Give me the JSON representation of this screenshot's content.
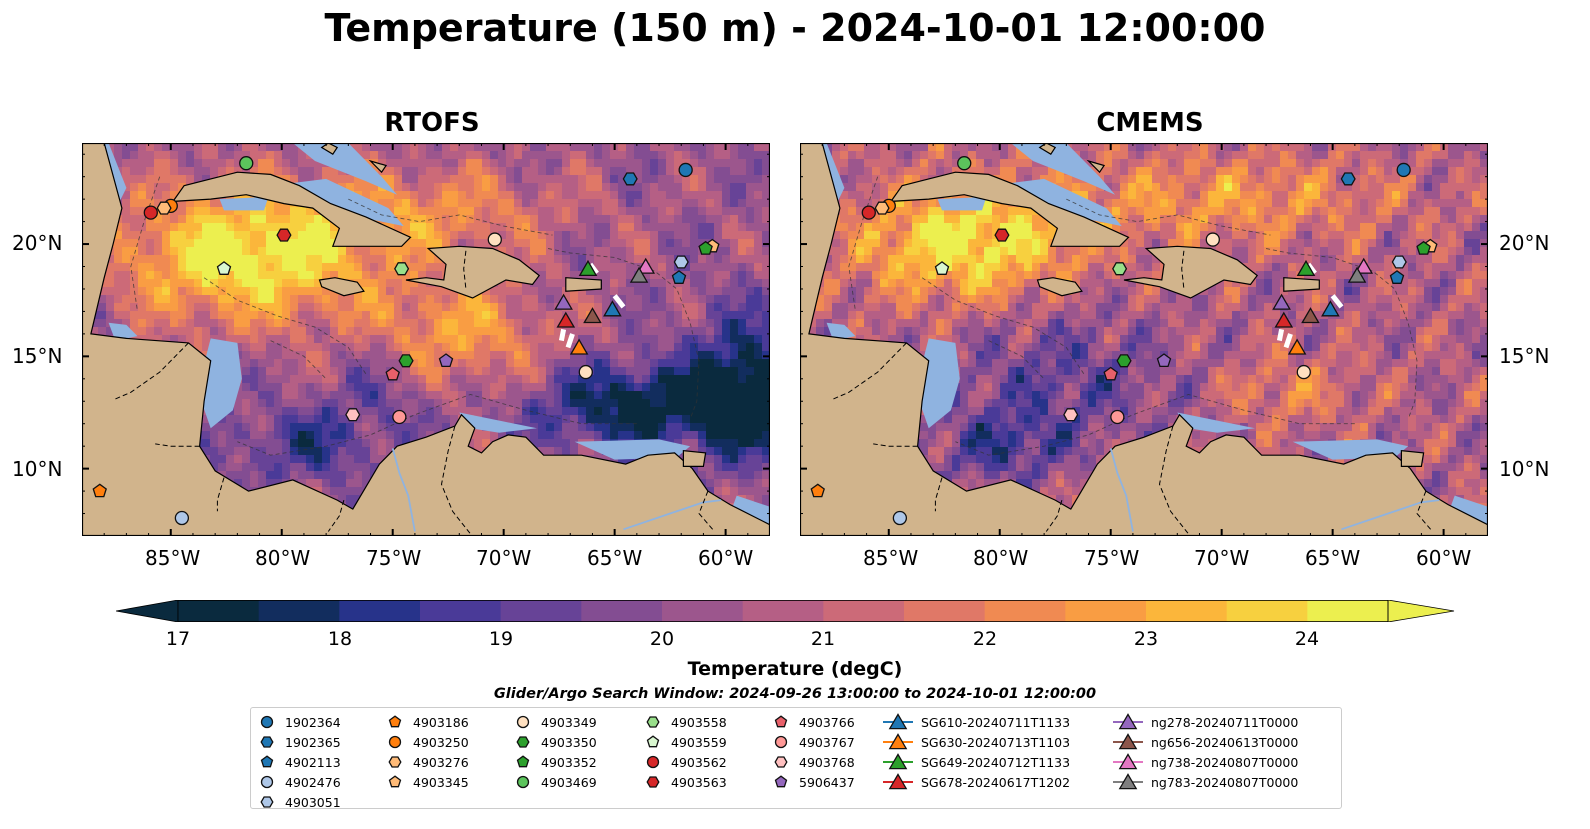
{
  "title": "Temperature (150 m) - 2024-10-01 12:00:00",
  "panels": [
    {
      "title": "RTOFS"
    },
    {
      "title": "CMEMS"
    }
  ],
  "lat_labels": [
    "20°N",
    "15°N",
    "10°N"
  ],
  "lon_labels": [
    "85°W",
    "80°W",
    "75°W",
    "70°W",
    "65°W",
    "60°W"
  ],
  "map_extent": {
    "lon": [
      -89,
      -58
    ],
    "lat": [
      7,
      24.5
    ]
  },
  "colorbar": {
    "label": "Temperature (degC)",
    "ticks": [
      "17",
      "18",
      "19",
      "20",
      "21",
      "22",
      "23",
      "24"
    ],
    "range": [
      17,
      24.5
    ],
    "colors": [
      "#0a2a3e",
      "#122d5e",
      "#27338a",
      "#4a3a98",
      "#674397",
      "#834d92",
      "#9c568d",
      "#b55f85",
      "#cc6a78",
      "#e07867",
      "#f08a52",
      "#f99d43",
      "#fbb63b",
      "#f7d03f",
      "#ecef4f"
    ]
  },
  "search_window": "Glider/Argo Search Window: 2024-09-26 13:00:00 to 2024-10-01 12:00:00",
  "legend": [
    {
      "label": "1902364",
      "marker": "circle",
      "color": "#1f77b4"
    },
    {
      "label": "1902365",
      "marker": "hexagon",
      "color": "#1f77b4"
    },
    {
      "label": "4902113",
      "marker": "pentagon",
      "color": "#1f77b4"
    },
    {
      "label": "4902476",
      "marker": "circle",
      "color": "#aec7e8"
    },
    {
      "label": "4903051",
      "marker": "hexagon",
      "color": "#aec7e8"
    },
    {
      "label": "4903186",
      "marker": "pentagon",
      "color": "#ff7f0e"
    },
    {
      "label": "4903250",
      "marker": "circle",
      "color": "#ff7f0e"
    },
    {
      "label": "4903276",
      "marker": "hexagon",
      "color": "#ffbb78"
    },
    {
      "label": "4903345",
      "marker": "pentagon",
      "color": "#ffbb78"
    },
    {
      "label": "4903349",
      "marker": "circle",
      "color": "#ffe0c0"
    },
    {
      "label": "4903350",
      "marker": "hexagon",
      "color": "#2ca02c"
    },
    {
      "label": "4903352",
      "marker": "pentagon",
      "color": "#2ca02c"
    },
    {
      "label": "4903469",
      "marker": "circle",
      "color": "#5cc45c"
    },
    {
      "label": "4903558",
      "marker": "hexagon",
      "color": "#98df8a"
    },
    {
      "label": "4903559",
      "marker": "pentagon",
      "color": "#d9f7d0"
    },
    {
      "label": "4903562",
      "marker": "circle",
      "color": "#d62728"
    },
    {
      "label": "4903563",
      "marker": "hexagon",
      "color": "#d62728"
    },
    {
      "label": "4903766",
      "marker": "pentagon",
      "color": "#e8606a"
    },
    {
      "label": "4903767",
      "marker": "circle",
      "color": "#ff9896"
    },
    {
      "label": "4903768",
      "marker": "hexagon",
      "color": "#ffc0c0"
    },
    {
      "label": "5906437",
      "marker": "pentagon",
      "color": "#9467bd"
    },
    {
      "label": "SG610-20240711T1133",
      "marker": "triangle-line",
      "color": "#1f77b4"
    },
    {
      "label": "SG630-20240713T1103",
      "marker": "triangle-line",
      "color": "#ff7f0e"
    },
    {
      "label": "SG649-20240712T1133",
      "marker": "triangle-line",
      "color": "#2ca02c"
    },
    {
      "label": "SG678-20240617T1202",
      "marker": "triangle-line",
      "color": "#d62728"
    },
    {
      "label": "ng278-20240711T0000",
      "marker": "triangle-line",
      "color": "#9467bd"
    },
    {
      "label": "ng656-20240613T0000",
      "marker": "triangle-line",
      "color": "#8c564b"
    },
    {
      "label": "ng738-20240807T0000",
      "marker": "triangle-line",
      "color": "#e377c2"
    },
    {
      "label": "ng783-20240807T0000",
      "marker": "triangle-line",
      "color": "#7f7f7f"
    }
  ],
  "floats": [
    {
      "id": "1902364",
      "lon": -61.8,
      "lat": 23.3
    },
    {
      "id": "1902365",
      "lon": -64.3,
      "lat": 22.9
    },
    {
      "id": "4902113",
      "lon": -62.1,
      "lat": 18.5
    },
    {
      "id": "4902476",
      "lon": -84.5,
      "lat": 7.8
    },
    {
      "id": "4903051",
      "lon": -62.0,
      "lat": 19.2
    },
    {
      "id": "4903186",
      "lon": -88.2,
      "lat": 9.0
    },
    {
      "id": "4903250",
      "lon": -85.0,
      "lat": 21.7
    },
    {
      "id": "4903276",
      "lon": -85.3,
      "lat": 21.6
    },
    {
      "id": "4903345",
      "lon": -60.6,
      "lat": 19.9
    },
    {
      "id": "4903349",
      "lon": -70.4,
      "lat": 20.2
    },
    {
      "id": "4903350",
      "lon": -74.4,
      "lat": 14.8
    },
    {
      "id": "4903352",
      "lon": -60.9,
      "lat": 19.8
    },
    {
      "id": "4903469",
      "lon": -81.6,
      "lat": 23.6
    },
    {
      "id": "4903558",
      "lon": -74.6,
      "lat": 18.9
    },
    {
      "id": "4903559",
      "lon": -82.6,
      "lat": 18.9
    },
    {
      "id": "4903562",
      "lon": -85.9,
      "lat": 21.4
    },
    {
      "id": "4903563",
      "lon": -79.9,
      "lat": 20.4
    },
    {
      "id": "4903766",
      "lon": -75.0,
      "lat": 14.2
    },
    {
      "id": "4903767",
      "lon": -74.7,
      "lat": 12.3
    },
    {
      "id": "4903768",
      "lon": -76.8,
      "lat": 12.4
    },
    {
      "id": "5906437",
      "lon": -72.6,
      "lat": 14.8
    }
  ],
  "gliders": [
    {
      "id": "SG610-20240711T1133",
      "lon": -65.1,
      "lat": 17.1
    },
    {
      "id": "SG630-20240713T1103",
      "lon": -66.6,
      "lat": 15.4
    },
    {
      "id": "SG649-20240712T1133",
      "lon": -66.2,
      "lat": 18.9
    },
    {
      "id": "SG678-20240617T1202",
      "lon": -67.2,
      "lat": 16.6
    },
    {
      "id": "ng278-20240711T0000",
      "lon": -67.3,
      "lat": 17.4
    },
    {
      "id": "ng656-20240613T0000",
      "lon": -66.0,
      "lat": 16.8
    },
    {
      "id": "ng738-20240807T0000",
      "lon": -63.6,
      "lat": 19.0
    },
    {
      "id": "ng783-20240807T0000",
      "lon": -63.9,
      "lat": 18.6
    }
  ],
  "extra_float": {
    "id": "4903349-b",
    "lon": -66.3,
    "lat": 14.3
  }
}
